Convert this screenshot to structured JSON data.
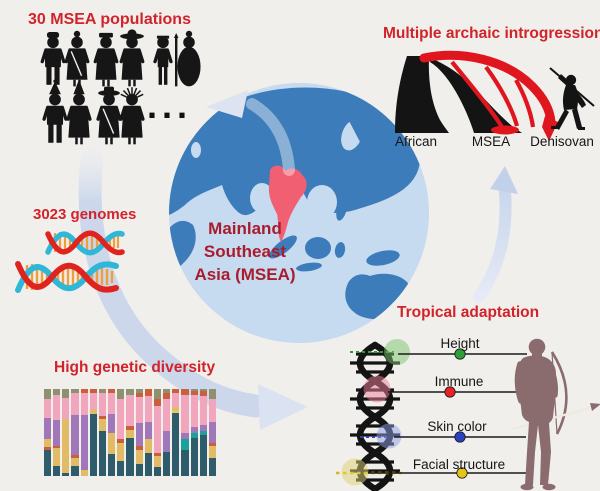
{
  "background_color": "#f0efec",
  "accent_red": "#d2232a",
  "globe": {
    "caption_lines": [
      "Mainland",
      "Southeast",
      "Asia (MSEA)"
    ],
    "caption_color": "#a91c2e",
    "ocean_color": "#c6daf0",
    "land_color": "#3c7cba",
    "highlight_region": "Mainland Southeast Asia",
    "highlight_color": "#f16072"
  },
  "panels": {
    "populations": {
      "title": "30 MSEA populations",
      "more_indicator": "...",
      "figures_row1": [
        "turban-suit",
        "shawl-dress",
        "flat-cap-robe",
        "wide-hat-dress",
        "hunter-spear",
        "round-robe"
      ],
      "figures_row2": [
        "tiered-crown-suit",
        "conical-hat-dress",
        "brim-hat-coat",
        "spiky-crown-dress"
      ]
    },
    "genomes": {
      "title": "3023 genomes",
      "dna_strand_red": "#df231f",
      "dna_strand_cyan": "#2fb7d8",
      "dna_rung_orange": "#f09d3c"
    },
    "diversity": {
      "title": "High genetic diversity"
    },
    "introgression": {
      "title": "Multiple archaic introgression",
      "branch_labels": [
        "African",
        "MSEA",
        "Denisovan"
      ],
      "tree_color": "#141414",
      "introgression_color": "#e0161f"
    },
    "adaptation": {
      "title": "Tropical adaptation",
      "traits": [
        {
          "label": "Height",
          "dot_color": "#2e9f38",
          "glow_color": "#7cc36a"
        },
        {
          "label": "Immune",
          "dot_color": "#e62226",
          "glow_color": "#ef8099"
        },
        {
          "label": "Skin color",
          "dot_color": "#2b3fc1",
          "glow_color": "#8e9fe3"
        },
        {
          "label": "Facial structure",
          "dot_color": "#e6c519",
          "glow_color": "#ddcf70"
        }
      ],
      "silhouette_color": "#8a6c6e"
    }
  },
  "chart_data": {
    "type": "bar",
    "subtype": "stacked-admixture",
    "title": "High genetic diversity",
    "n_bars": 19,
    "grid": false,
    "axes_shown": false,
    "palette": {
      "teal": "#2f5c6b",
      "gold": "#e2bb66",
      "purple": "#a077b9",
      "pink": "#f1a6be",
      "orange": "#cb5f3c",
      "olive": "#8e9070",
      "aqua": "#17a29b",
      "yellow": "#e7cf56"
    },
    "bars": [
      [
        [
          "teal",
          30
        ],
        [
          "orange",
          3
        ],
        [
          "gold",
          10
        ],
        [
          "purple",
          24
        ],
        [
          "pink",
          21
        ],
        [
          "olive",
          12
        ]
      ],
      [
        [
          "teal",
          11
        ],
        [
          "gold",
          21
        ],
        [
          "orange",
          3
        ],
        [
          "purple",
          29
        ],
        [
          "pink",
          29
        ],
        [
          "olive",
          7
        ]
      ],
      [
        [
          "teal",
          4
        ],
        [
          "gold",
          61
        ],
        [
          "pink",
          25
        ],
        [
          "olive",
          10
        ]
      ],
      [
        [
          "teal",
          12
        ],
        [
          "gold",
          9
        ],
        [
          "orange",
          3
        ],
        [
          "purple",
          46
        ],
        [
          "pink",
          25
        ],
        [
          "olive",
          5
        ]
      ],
      [
        [
          "gold",
          7
        ],
        [
          "purple",
          63
        ],
        [
          "pink",
          26
        ],
        [
          "orange",
          4
        ]
      ],
      [
        [
          "teal",
          71
        ],
        [
          "gold",
          6
        ],
        [
          "pink",
          19
        ],
        [
          "orange",
          4
        ]
      ],
      [
        [
          "teal",
          52
        ],
        [
          "gold",
          13
        ],
        [
          "orange",
          4
        ],
        [
          "pink",
          27
        ],
        [
          "olive",
          4
        ]
      ],
      [
        [
          "teal",
          25
        ],
        [
          "gold",
          24
        ],
        [
          "purple",
          22
        ],
        [
          "pink",
          25
        ],
        [
          "orange",
          4
        ]
      ],
      [
        [
          "teal",
          17
        ],
        [
          "gold",
          21
        ],
        [
          "orange",
          4
        ],
        [
          "pink",
          46
        ],
        [
          "olive",
          12
        ]
      ],
      [
        [
          "teal",
          44
        ],
        [
          "gold",
          9
        ],
        [
          "orange",
          4
        ],
        [
          "pink",
          36
        ],
        [
          "olive",
          7
        ]
      ],
      [
        [
          "teal",
          14
        ],
        [
          "gold",
          16
        ],
        [
          "orange",
          5
        ],
        [
          "purple",
          26
        ],
        [
          "pink",
          30
        ],
        [
          "orange",
          5
        ],
        [
          "olive",
          4
        ]
      ],
      [
        [
          "teal",
          26
        ],
        [
          "gold",
          16
        ],
        [
          "purple",
          20
        ],
        [
          "pink",
          30
        ],
        [
          "orange",
          8
        ]
      ],
      [
        [
          "teal",
          10
        ],
        [
          "gold",
          13
        ],
        [
          "orange",
          4
        ],
        [
          "pink",
          54
        ],
        [
          "orange",
          8
        ],
        [
          "olive",
          11
        ]
      ],
      [
        [
          "teal",
          28
        ],
        [
          "purple",
          24
        ],
        [
          "pink",
          36
        ],
        [
          "orange",
          7
        ],
        [
          "olive",
          5
        ]
      ],
      [
        [
          "teal",
          72
        ],
        [
          "yellow",
          3
        ],
        [
          "gold",
          4
        ],
        [
          "pink",
          17
        ],
        [
          "orange",
          4
        ]
      ],
      [
        [
          "teal",
          30
        ],
        [
          "aqua",
          13
        ],
        [
          "purple",
          7
        ],
        [
          "pink",
          43
        ],
        [
          "orange",
          7
        ]
      ],
      [
        [
          "teal",
          44
        ],
        [
          "aqua",
          6
        ],
        [
          "purple",
          6
        ],
        [
          "pink",
          37
        ],
        [
          "orange",
          5
        ],
        [
          "olive",
          2
        ]
      ],
      [
        [
          "teal",
          47
        ],
        [
          "aqua",
          5
        ],
        [
          "purple",
          7
        ],
        [
          "pink",
          33
        ],
        [
          "orange",
          6
        ],
        [
          "olive",
          2
        ]
      ],
      [
        [
          "teal",
          21
        ],
        [
          "gold",
          13
        ],
        [
          "orange",
          4
        ],
        [
          "purple",
          24
        ],
        [
          "pink",
          27
        ],
        [
          "olive",
          11
        ]
      ]
    ]
  }
}
